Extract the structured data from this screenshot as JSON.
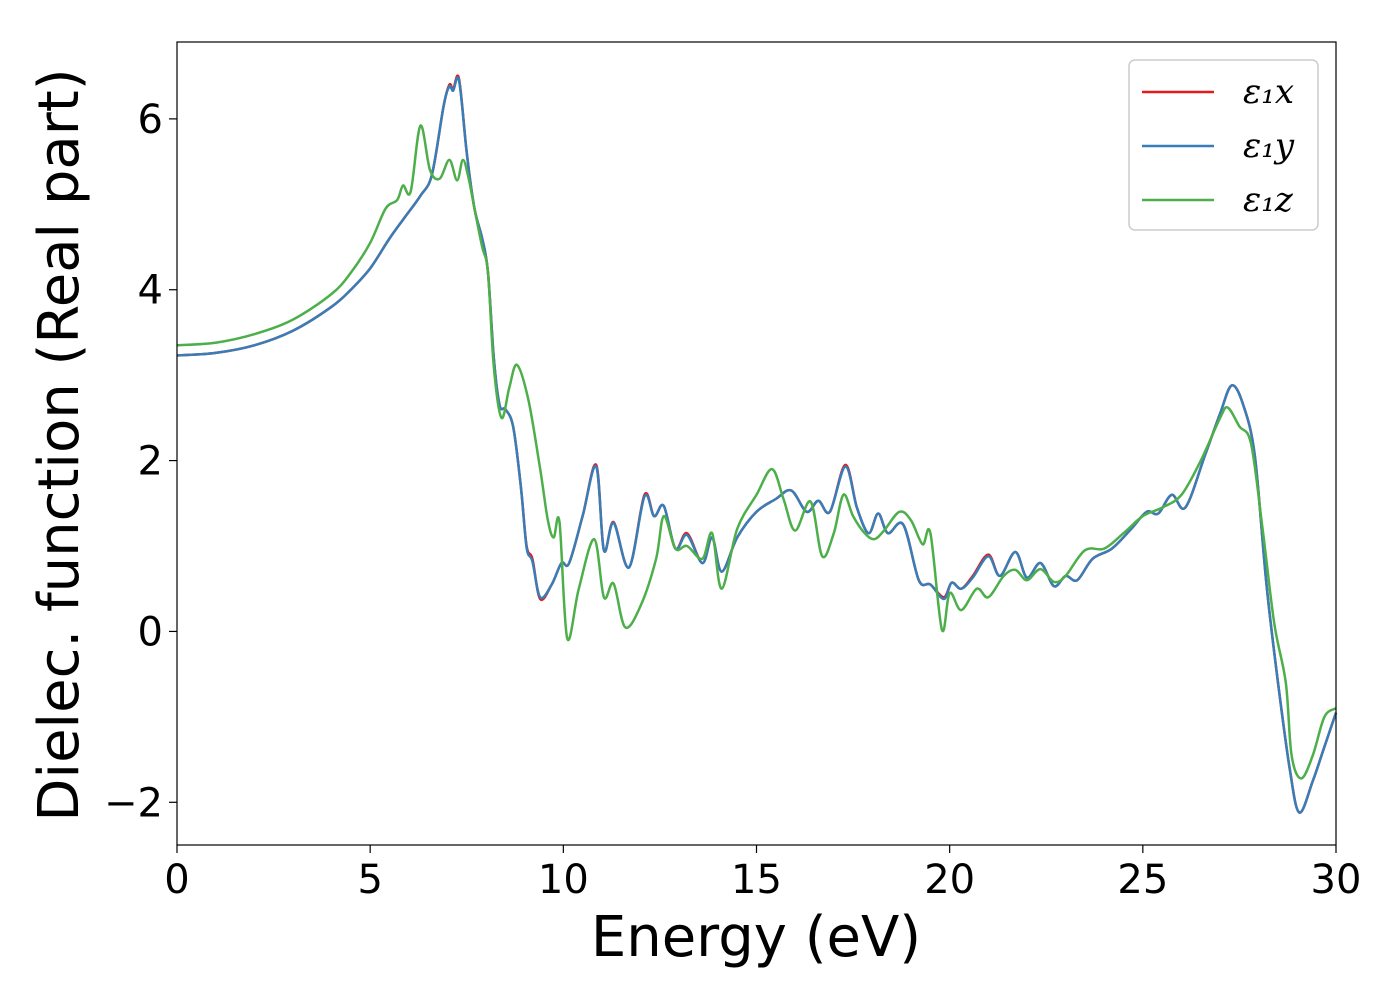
{
  "chart_data": {
    "type": "line",
    "title": "",
    "xlabel": "Energy (eV)",
    "ylabel": "Dielec. function (Real part)",
    "xlim": [
      0,
      30
    ],
    "ylim": [
      -2.5,
      6.9
    ],
    "xticks": [
      0,
      5,
      10,
      15,
      20,
      25,
      30
    ],
    "xtick_labels": [
      "0",
      "5",
      "10",
      "15",
      "20",
      "25",
      "30"
    ],
    "yticks": [
      -2,
      0,
      2,
      4,
      6
    ],
    "ytick_labels": [
      "−2",
      "0",
      "2",
      "4",
      "6"
    ],
    "grid": false,
    "legend_position": "top-right",
    "colors": {
      "x": "#e41a1c",
      "y": "#377eb8",
      "z": "#4daf4a"
    },
    "series": [
      {
        "name": "ε₁x",
        "key": "x",
        "points": [
          [
            0,
            3.23
          ],
          [
            1,
            3.26
          ],
          [
            2,
            3.35
          ],
          [
            3,
            3.52
          ],
          [
            4,
            3.8
          ],
          [
            4.5,
            4.0
          ],
          [
            5,
            4.25
          ],
          [
            5.5,
            4.6
          ],
          [
            5.9,
            4.85
          ],
          [
            6.3,
            5.1
          ],
          [
            6.6,
            5.35
          ],
          [
            6.9,
            6.15
          ],
          [
            7.05,
            6.4
          ],
          [
            7.15,
            6.35
          ],
          [
            7.3,
            6.47
          ],
          [
            7.5,
            5.6
          ],
          [
            7.7,
            4.95
          ],
          [
            7.9,
            4.6
          ],
          [
            8.05,
            4.2
          ],
          [
            8.2,
            3.2
          ],
          [
            8.35,
            2.65
          ],
          [
            8.5,
            2.6
          ],
          [
            8.7,
            2.4
          ],
          [
            8.9,
            1.7
          ],
          [
            9.05,
            1.0
          ],
          [
            9.2,
            0.85
          ],
          [
            9.4,
            0.38
          ],
          [
            9.7,
            0.55
          ],
          [
            9.95,
            0.8
          ],
          [
            10.15,
            0.8
          ],
          [
            10.5,
            1.35
          ],
          [
            10.85,
            1.95
          ],
          [
            11.05,
            0.95
          ],
          [
            11.3,
            1.28
          ],
          [
            11.7,
            0.75
          ],
          [
            12.1,
            1.6
          ],
          [
            12.35,
            1.35
          ],
          [
            12.6,
            1.47
          ],
          [
            12.9,
            0.97
          ],
          [
            13.2,
            1.15
          ],
          [
            13.6,
            0.8
          ],
          [
            13.85,
            1.1
          ],
          [
            14.1,
            0.7
          ],
          [
            14.5,
            1.1
          ],
          [
            15.0,
            1.4
          ],
          [
            15.5,
            1.55
          ],
          [
            15.9,
            1.65
          ],
          [
            16.3,
            1.4
          ],
          [
            16.6,
            1.53
          ],
          [
            16.9,
            1.4
          ],
          [
            17.3,
            1.95
          ],
          [
            17.6,
            1.45
          ],
          [
            17.9,
            1.15
          ],
          [
            18.15,
            1.38
          ],
          [
            18.4,
            1.15
          ],
          [
            18.8,
            1.25
          ],
          [
            19.2,
            0.6
          ],
          [
            19.5,
            0.55
          ],
          [
            19.85,
            0.4
          ],
          [
            20.05,
            0.57
          ],
          [
            20.3,
            0.5
          ],
          [
            20.6,
            0.65
          ],
          [
            21.0,
            0.9
          ],
          [
            21.3,
            0.65
          ],
          [
            21.7,
            0.93
          ],
          [
            22.0,
            0.63
          ],
          [
            22.35,
            0.8
          ],
          [
            22.7,
            0.53
          ],
          [
            23.0,
            0.65
          ],
          [
            23.3,
            0.6
          ],
          [
            23.7,
            0.85
          ],
          [
            24.2,
            0.97
          ],
          [
            24.7,
            1.2
          ],
          [
            25.1,
            1.4
          ],
          [
            25.4,
            1.38
          ],
          [
            25.75,
            1.6
          ],
          [
            26.1,
            1.45
          ],
          [
            26.6,
            2.05
          ],
          [
            27.0,
            2.55
          ],
          [
            27.3,
            2.88
          ],
          [
            27.6,
            2.65
          ],
          [
            27.9,
            2.05
          ],
          [
            28.2,
            0.55
          ],
          [
            28.5,
            -0.6
          ],
          [
            28.8,
            -1.6
          ],
          [
            29.05,
            -2.12
          ],
          [
            29.4,
            -1.75
          ],
          [
            29.7,
            -1.35
          ],
          [
            30,
            -0.95
          ]
        ]
      },
      {
        "name": "ε₁y",
        "key": "y",
        "points": [
          [
            0,
            3.23
          ],
          [
            1,
            3.26
          ],
          [
            2,
            3.35
          ],
          [
            3,
            3.52
          ],
          [
            4,
            3.8
          ],
          [
            4.5,
            4.0
          ],
          [
            5,
            4.25
          ],
          [
            5.5,
            4.6
          ],
          [
            5.9,
            4.85
          ],
          [
            6.3,
            5.1
          ],
          [
            6.6,
            5.35
          ],
          [
            6.9,
            6.15
          ],
          [
            7.05,
            6.38
          ],
          [
            7.15,
            6.33
          ],
          [
            7.3,
            6.45
          ],
          [
            7.5,
            5.6
          ],
          [
            7.7,
            4.95
          ],
          [
            7.9,
            4.6
          ],
          [
            8.05,
            4.2
          ],
          [
            8.2,
            3.2
          ],
          [
            8.35,
            2.65
          ],
          [
            8.5,
            2.6
          ],
          [
            8.7,
            2.4
          ],
          [
            8.9,
            1.7
          ],
          [
            9.05,
            0.98
          ],
          [
            9.2,
            0.82
          ],
          [
            9.4,
            0.4
          ],
          [
            9.7,
            0.55
          ],
          [
            9.95,
            0.8
          ],
          [
            10.15,
            0.8
          ],
          [
            10.5,
            1.35
          ],
          [
            10.85,
            1.93
          ],
          [
            11.05,
            0.95
          ],
          [
            11.3,
            1.27
          ],
          [
            11.7,
            0.75
          ],
          [
            12.1,
            1.58
          ],
          [
            12.35,
            1.35
          ],
          [
            12.6,
            1.47
          ],
          [
            12.9,
            0.97
          ],
          [
            13.2,
            1.13
          ],
          [
            13.6,
            0.8
          ],
          [
            13.85,
            1.1
          ],
          [
            14.1,
            0.7
          ],
          [
            14.5,
            1.1
          ],
          [
            15.0,
            1.4
          ],
          [
            15.5,
            1.55
          ],
          [
            15.9,
            1.65
          ],
          [
            16.3,
            1.4
          ],
          [
            16.6,
            1.53
          ],
          [
            16.9,
            1.4
          ],
          [
            17.3,
            1.93
          ],
          [
            17.6,
            1.45
          ],
          [
            17.9,
            1.15
          ],
          [
            18.15,
            1.38
          ],
          [
            18.4,
            1.15
          ],
          [
            18.8,
            1.25
          ],
          [
            19.2,
            0.6
          ],
          [
            19.5,
            0.55
          ],
          [
            19.85,
            0.38
          ],
          [
            20.05,
            0.57
          ],
          [
            20.3,
            0.5
          ],
          [
            20.6,
            0.63
          ],
          [
            21.0,
            0.88
          ],
          [
            21.3,
            0.65
          ],
          [
            21.7,
            0.93
          ],
          [
            22.0,
            0.63
          ],
          [
            22.35,
            0.8
          ],
          [
            22.7,
            0.53
          ],
          [
            23.0,
            0.65
          ],
          [
            23.3,
            0.6
          ],
          [
            23.7,
            0.85
          ],
          [
            24.2,
            0.97
          ],
          [
            24.7,
            1.2
          ],
          [
            25.1,
            1.4
          ],
          [
            25.4,
            1.38
          ],
          [
            25.75,
            1.6
          ],
          [
            26.1,
            1.45
          ],
          [
            26.6,
            2.05
          ],
          [
            27.0,
            2.55
          ],
          [
            27.3,
            2.88
          ],
          [
            27.6,
            2.65
          ],
          [
            27.9,
            2.05
          ],
          [
            28.2,
            0.55
          ],
          [
            28.5,
            -0.6
          ],
          [
            28.8,
            -1.6
          ],
          [
            29.05,
            -2.12
          ],
          [
            29.4,
            -1.75
          ],
          [
            29.7,
            -1.35
          ],
          [
            30,
            -0.95
          ]
        ]
      },
      {
        "name": "ε₁z",
        "key": "z",
        "points": [
          [
            0,
            3.35
          ],
          [
            1,
            3.38
          ],
          [
            2,
            3.48
          ],
          [
            3,
            3.65
          ],
          [
            4,
            3.95
          ],
          [
            4.5,
            4.2
          ],
          [
            5,
            4.55
          ],
          [
            5.4,
            4.95
          ],
          [
            5.7,
            5.05
          ],
          [
            5.85,
            5.22
          ],
          [
            6.05,
            5.15
          ],
          [
            6.3,
            5.92
          ],
          [
            6.55,
            5.4
          ],
          [
            6.8,
            5.3
          ],
          [
            7.05,
            5.52
          ],
          [
            7.25,
            5.28
          ],
          [
            7.4,
            5.52
          ],
          [
            7.55,
            5.3
          ],
          [
            7.7,
            4.95
          ],
          [
            7.9,
            4.5
          ],
          [
            8.05,
            4.2
          ],
          [
            8.2,
            3.1
          ],
          [
            8.4,
            2.5
          ],
          [
            8.6,
            2.85
          ],
          [
            8.8,
            3.12
          ],
          [
            9.1,
            2.7
          ],
          [
            9.4,
            1.9
          ],
          [
            9.6,
            1.3
          ],
          [
            9.75,
            1.1
          ],
          [
            9.9,
            1.28
          ],
          [
            10.1,
            -0.08
          ],
          [
            10.4,
            0.5
          ],
          [
            10.8,
            1.08
          ],
          [
            11.05,
            0.4
          ],
          [
            11.3,
            0.56
          ],
          [
            11.6,
            0.05
          ],
          [
            12.0,
            0.3
          ],
          [
            12.4,
            0.85
          ],
          [
            12.6,
            1.35
          ],
          [
            12.9,
            0.97
          ],
          [
            13.2,
            1.0
          ],
          [
            13.6,
            0.85
          ],
          [
            13.85,
            1.15
          ],
          [
            14.1,
            0.5
          ],
          [
            14.5,
            1.2
          ],
          [
            15.0,
            1.6
          ],
          [
            15.4,
            1.9
          ],
          [
            15.7,
            1.55
          ],
          [
            16.0,
            1.18
          ],
          [
            16.4,
            1.52
          ],
          [
            16.7,
            0.88
          ],
          [
            17.0,
            1.15
          ],
          [
            17.25,
            1.6
          ],
          [
            17.5,
            1.35
          ],
          [
            17.8,
            1.15
          ],
          [
            18.05,
            1.08
          ],
          [
            18.3,
            1.18
          ],
          [
            18.7,
            1.4
          ],
          [
            19.0,
            1.3
          ],
          [
            19.3,
            1.02
          ],
          [
            19.5,
            1.15
          ],
          [
            19.8,
            0.02
          ],
          [
            20.0,
            0.45
          ],
          [
            20.3,
            0.25
          ],
          [
            20.7,
            0.5
          ],
          [
            21.0,
            0.4
          ],
          [
            21.4,
            0.65
          ],
          [
            21.7,
            0.72
          ],
          [
            22.0,
            0.6
          ],
          [
            22.35,
            0.73
          ],
          [
            22.7,
            0.58
          ],
          [
            23.0,
            0.65
          ],
          [
            23.5,
            0.95
          ],
          [
            24.0,
            0.97
          ],
          [
            24.5,
            1.15
          ],
          [
            25.0,
            1.35
          ],
          [
            25.5,
            1.45
          ],
          [
            26.0,
            1.6
          ],
          [
            26.5,
            2.0
          ],
          [
            27.0,
            2.5
          ],
          [
            27.2,
            2.62
          ],
          [
            27.5,
            2.4
          ],
          [
            27.8,
            2.2
          ],
          [
            28.1,
            1.2
          ],
          [
            28.4,
            0.1
          ],
          [
            28.7,
            -0.6
          ],
          [
            28.85,
            -1.45
          ],
          [
            29.1,
            -1.72
          ],
          [
            29.4,
            -1.45
          ],
          [
            29.7,
            -1.0
          ],
          [
            30,
            -0.9
          ]
        ]
      }
    ]
  }
}
